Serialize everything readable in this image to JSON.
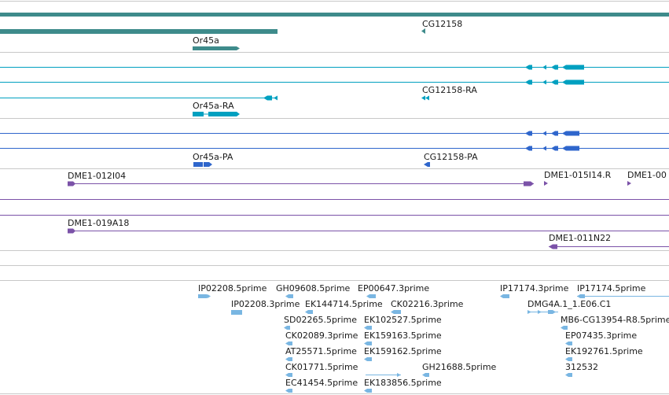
{
  "colors": {
    "gene": "#3e8b8b",
    "transcript": "#00a0c0",
    "protein": "#2f66cc",
    "clone": "#7b52a8",
    "est": "#79b6e2",
    "separator": "#c8c8c8"
  },
  "tracks": {
    "genes": {
      "labels": [
        "Or45a",
        "CG12158"
      ]
    },
    "transcripts": {
      "labels": [
        "Or45a-RA",
        "CG12158-RA"
      ]
    },
    "proteins": {
      "labels": [
        "Or45a-PA",
        "CG12158-PA"
      ]
    },
    "clones": {
      "labels": [
        "DME1-012I04",
        "DME1-015I14.R",
        "DME1-00",
        "DME1-019A18",
        "DME1-011N22"
      ]
    },
    "ests": {
      "labels": [
        "IP02208.5prime",
        "GH09608.5prime",
        "EP00647.3prime",
        "IP02208.3prime",
        "EK144714.5prime",
        "CK02216.3prime",
        "SD02265.5prime",
        "EK102527.5prime",
        "CK02089.3prime",
        "EK159163.5prime",
        "AT25571.5prime",
        "EK159162.5prime",
        "CK01771.5prime",
        "GH21688.5prime",
        "EC41454.5prime",
        "EK183856.5prime",
        "IP17174.3prime",
        "IP17174.5prime",
        "DMG4A.1_1.E06.C1",
        "MB6-CG13954-R8.5prime",
        "EP07435.3prime",
        "EK192761.5prime",
        "312532"
      ]
    }
  }
}
